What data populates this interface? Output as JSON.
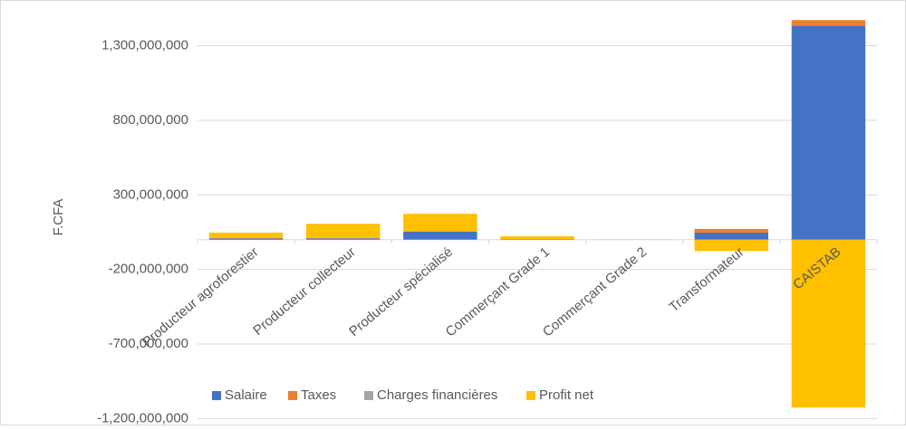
{
  "chart_data": {
    "type": "bar",
    "stacked": true,
    "y_label": "F.CFA",
    "categories": [
      "Producteur agroforestier",
      "Producteur collecteur",
      "Producteur spécialisé",
      "Commerçant Grade 1",
      "Commerçant Grade 2",
      "Transformateur",
      "CAISTAB"
    ],
    "series": [
      {
        "name": "Salaire",
        "color": "#4472c4",
        "values": [
          8000000,
          8000000,
          53000000,
          3000000,
          0,
          47000000,
          1435000000
        ]
      },
      {
        "name": "Taxes",
        "color": "#ed7d31",
        "values": [
          3000000,
          2000000,
          2000000,
          1000000,
          0,
          25000000,
          37000000
        ]
      },
      {
        "name": "Charges financières",
        "color": "#a5a5a5",
        "values": [
          1000000,
          1000000,
          1000000,
          0,
          0,
          0,
          0
        ]
      },
      {
        "name": "Profit net",
        "color": "#ffc000",
        "values": [
          35000000,
          95000000,
          117000000,
          18000000,
          2000000,
          -76000000,
          -1126000000
        ]
      }
    ],
    "ylim": [
      -1200000000,
      1500000000
    ],
    "yticks": [
      {
        "value": -1200000000,
        "label": "-1,200,000,000"
      },
      {
        "value": -700000000,
        "label": "-700,000,000"
      },
      {
        "value": -200000000,
        "label": "-200,000,000"
      },
      {
        "value": 300000000,
        "label": "300,000,000"
      },
      {
        "value": 800000000,
        "label": "800,000,000"
      },
      {
        "value": 1300000000,
        "label": "1,300,000,000"
      }
    ],
    "grid": true,
    "legend": "bottom"
  }
}
